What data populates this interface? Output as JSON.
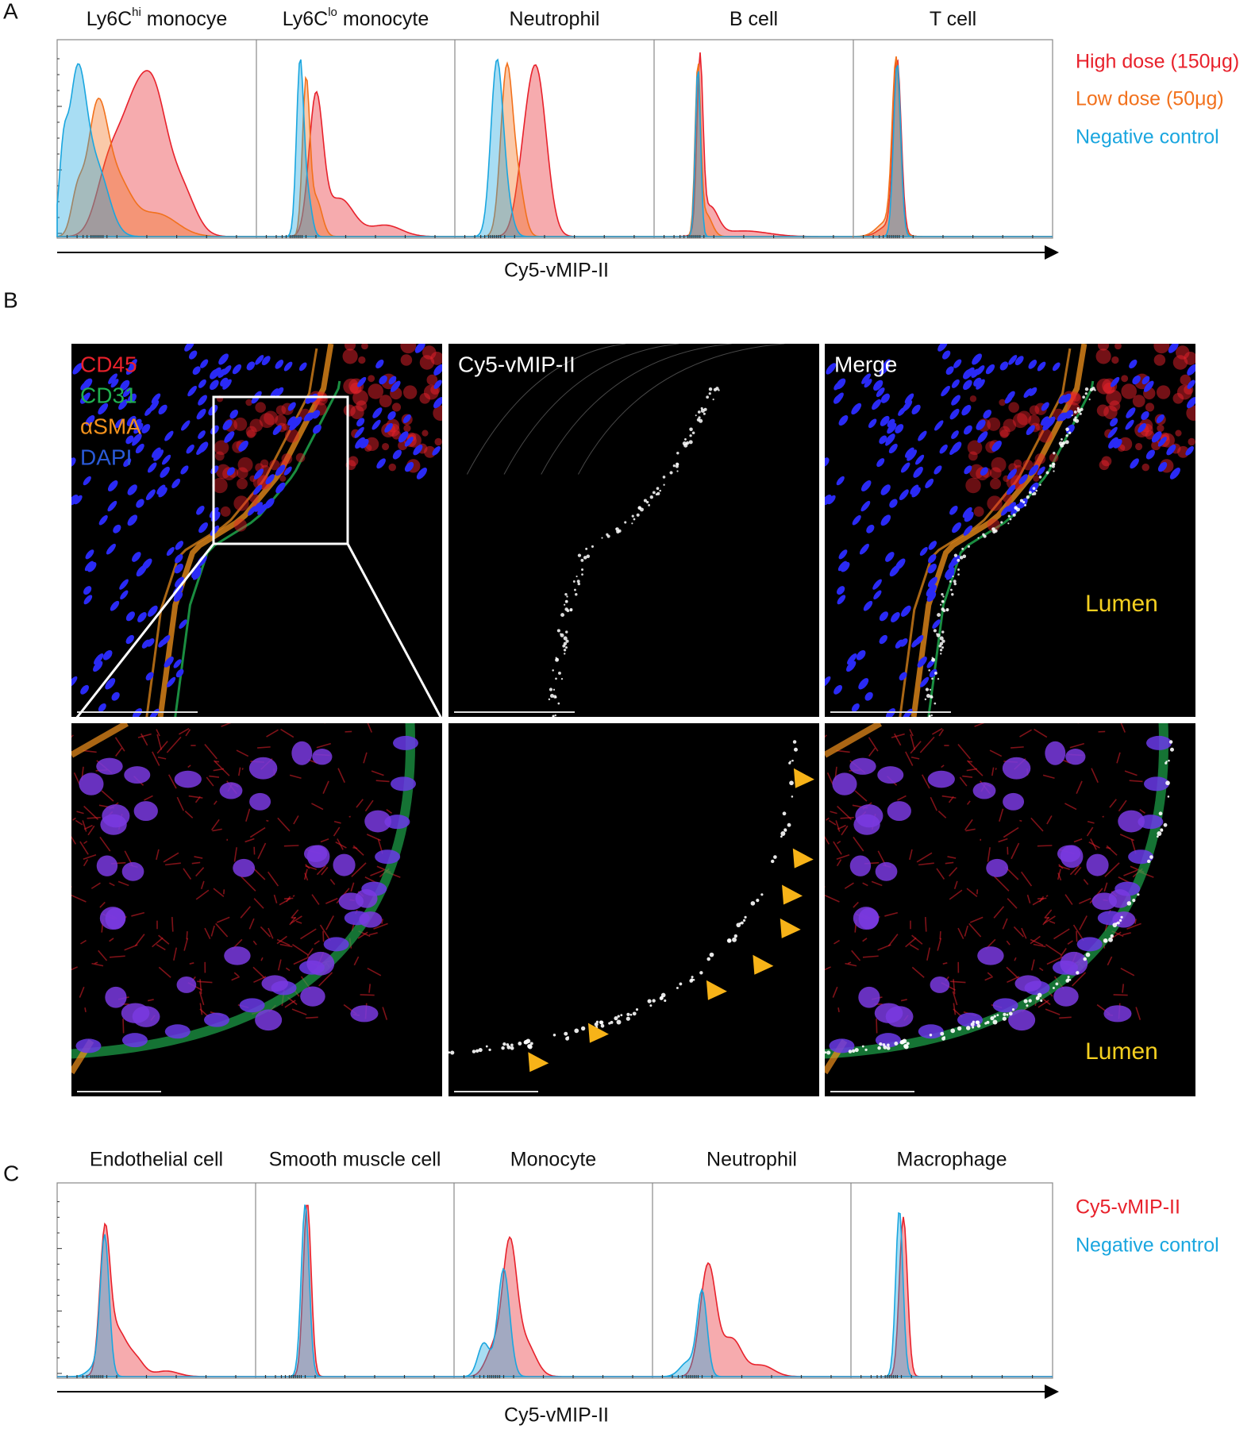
{
  "panel_a": {
    "label": "A",
    "titles": [
      {
        "base": "Ly6C",
        "sup": "hi",
        "rest": " monocye"
      },
      {
        "base": "Ly6C",
        "sup": "lo",
        "rest": " monocyte"
      },
      {
        "base": "Neutrophil"
      },
      {
        "base": "B cell"
      },
      {
        "base": "T cell"
      }
    ],
    "legend": [
      {
        "name": "High dose (150μg)",
        "color": "#e8212b"
      },
      {
        "name": "Low dose (50μg)",
        "color": "#f2711c"
      },
      {
        "name": "Negative control",
        "color": "#1aa6df"
      }
    ],
    "x_label": "Cy5-vMIP-II"
  },
  "panel_b": {
    "label": "B",
    "channels": [
      {
        "name": "CD45",
        "color": "#e8212b"
      },
      {
        "name": "CD31",
        "color": "#20b050"
      },
      {
        "name": "αSMA",
        "color": "#f2911c"
      },
      {
        "name": "DAPI",
        "color": "#2a5ad8"
      }
    ],
    "column_titles": [
      "Cy5-vMIP-II",
      "Merge"
    ],
    "annotations": [
      "Lumen",
      "Lumen"
    ],
    "annotation_color": "#f5d020"
  },
  "panel_c": {
    "label": "C",
    "titles": [
      "Endothelial cell",
      "Smooth muscle cell",
      "Monocyte",
      "Neutrophil",
      "Macrophage"
    ],
    "legend": [
      {
        "name": "Cy5-vMIP-II",
        "color": "#e8212b"
      },
      {
        "name": "Negative control",
        "color": "#1aa6df"
      }
    ],
    "x_label": "Cy5-vMIP-II"
  }
}
